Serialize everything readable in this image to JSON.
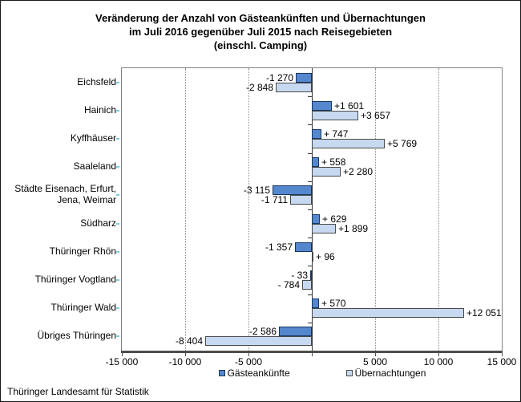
{
  "chart_data": {
    "type": "bar",
    "orientation": "horizontal",
    "title": "Veränderung der Anzahl von Gästeankünften und Übernachtungen im Juli 2016 gegenüber Juli 2015 nach Reisegebieten (einschl. Camping)",
    "title_lines": [
      "Veränderung der Anzahl von Gästeankünften und Übernachtungen",
      "im Juli 2016 gegenüber Juli 2015 nach Reisegebieten",
      "(einschl. Camping)"
    ],
    "categories": [
      "Eichsfeld",
      "Hainich",
      "Kyffhäuser",
      "Saaleland",
      "Städte Eisenach, Erfurt, Jena, Weimar",
      "Südharz",
      "Thüringer Rhön",
      "Thüringer Vogtland",
      "Thüringer Wald",
      "Übriges Thüringen"
    ],
    "series": [
      {
        "name": "Gästeankünfte",
        "fill_color": "#5587CE",
        "border_color": "#17375E",
        "values": [
          -1270,
          1601,
          747,
          558,
          -3115,
          629,
          -1357,
          -33,
          570,
          -2586
        ],
        "labels": [
          "-1 270",
          "+1 601",
          "+ 747",
          "+ 558",
          "-3 115",
          "+ 629",
          "-1 357",
          "- 33",
          "+ 570",
          "-2 586"
        ]
      },
      {
        "name": "Übernachtungen",
        "fill_color": "#C6D9F0",
        "border_color": "#4A4A4A",
        "values": [
          -2848,
          3657,
          5769,
          2280,
          -1711,
          1899,
          96,
          -784,
          12051,
          -8404
        ],
        "labels": [
          "-2 848",
          "+3 657",
          "+5 769",
          "+2 280",
          "-1 711",
          "+1 899",
          "+ 96",
          "- 784",
          "+12 051",
          "-8 404"
        ]
      }
    ],
    "xlim": [
      -15000,
      15000
    ],
    "x_ticks": [
      {
        "value": -15000,
        "label": "-15 000"
      },
      {
        "value": -10000,
        "label": "-10 000"
      },
      {
        "value": -5000,
        "label": "-5 000"
      },
      {
        "value": 0,
        "label": ""
      },
      {
        "value": 5000,
        "label": "5 000"
      },
      {
        "value": 10000,
        "label": "10 000"
      },
      {
        "value": 15000,
        "label": "15 000"
      }
    ],
    "gridlines": [
      -10000,
      -5000,
      5000,
      10000
    ],
    "grid": "vertical-dotted",
    "legend_position": "bottom",
    "footer": "Thüringer Landesamt für Statistik"
  }
}
